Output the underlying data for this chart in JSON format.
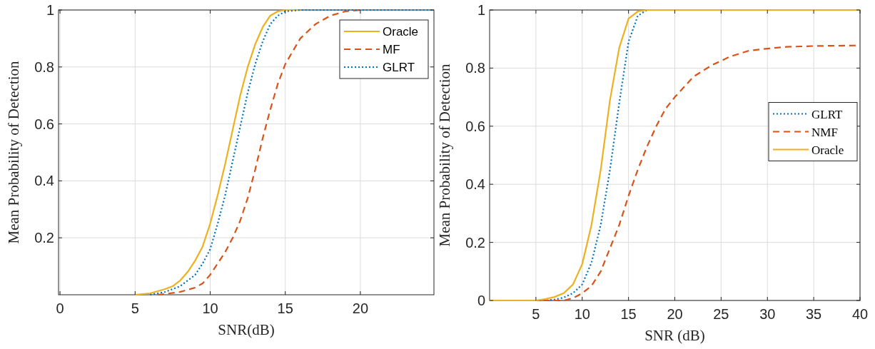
{
  "chart_data": [
    {
      "type": "line",
      "xlabel": "SNR(dB)",
      "ylabel": "Mean Probability of Detection",
      "xlim": [
        -0.1,
        24.9
      ],
      "ylim": [
        0,
        1
      ],
      "xticks": [
        0,
        5,
        10,
        15,
        20
      ],
      "yticks": [
        0.2,
        0.4,
        0.6,
        0.8,
        1
      ],
      "grid": true,
      "legend": "top right",
      "series": [
        {
          "name": "Oracle",
          "color": "#edb120",
          "line_style": "solid",
          "x": [
            5,
            6,
            7,
            7.5,
            8,
            8.5,
            9,
            9.5,
            10,
            10.5,
            11,
            11.5,
            12,
            12.5,
            13,
            13.5,
            14,
            14.5,
            15,
            16
          ],
          "values": [
            0,
            0.005,
            0.02,
            0.03,
            0.05,
            0.08,
            0.12,
            0.17,
            0.25,
            0.35,
            0.46,
            0.58,
            0.7,
            0.8,
            0.88,
            0.94,
            0.98,
            0.995,
            1,
            1
          ]
        },
        {
          "name": "MF",
          "color": "#d95319",
          "line_style": "dashed",
          "x": [
            6.5,
            7,
            8,
            9,
            9.5,
            10,
            10.5,
            11,
            11.5,
            12,
            12.5,
            13,
            13.5,
            14,
            14.5,
            15,
            16,
            17,
            18,
            19,
            20
          ],
          "values": [
            0,
            0.003,
            0.01,
            0.025,
            0.04,
            0.07,
            0.11,
            0.15,
            0.2,
            0.26,
            0.34,
            0.44,
            0.55,
            0.65,
            0.74,
            0.81,
            0.9,
            0.95,
            0.98,
            0.995,
            1
          ]
        },
        {
          "name": "GLRT",
          "color": "#0072bd",
          "line_style": "dotted",
          "x": [
            6,
            7,
            8,
            9,
            9.5,
            10,
            10.5,
            11,
            11.5,
            12,
            12.5,
            13,
            13.5,
            14,
            14.5,
            15,
            16,
            24.9
          ],
          "values": [
            0,
            0.01,
            0.03,
            0.07,
            0.11,
            0.16,
            0.25,
            0.35,
            0.47,
            0.59,
            0.71,
            0.81,
            0.89,
            0.95,
            0.98,
            0.995,
            1,
            1
          ]
        }
      ]
    },
    {
      "type": "line",
      "xlabel": "SNR (dB)",
      "ylabel": "Mean Probability of Detection",
      "xlim": [
        0,
        40
      ],
      "ylim": [
        0,
        1
      ],
      "xticks": [
        5,
        10,
        15,
        20,
        25,
        30,
        35,
        40
      ],
      "yticks": [
        0,
        0.2,
        0.4,
        0.6,
        0.8,
        1
      ],
      "grid": true,
      "legend": "right",
      "series": [
        {
          "name": "GLRT",
          "color": "#0072bd",
          "line_style": "dotted",
          "x": [
            0,
            6,
            7,
            8,
            9,
            10,
            11,
            12,
            13,
            14,
            15,
            16,
            17,
            40
          ],
          "values": [
            0,
            0,
            0.003,
            0.01,
            0.025,
            0.055,
            0.13,
            0.26,
            0.45,
            0.68,
            0.89,
            0.98,
            1,
            1
          ]
        },
        {
          "name": "NMF",
          "color": "#d95319",
          "line_style": "dashed",
          "x": [
            0,
            8,
            9,
            10,
            11,
            12,
            13,
            14,
            15,
            16,
            17,
            18,
            19,
            20,
            22,
            24,
            26,
            28,
            30,
            32,
            35,
            40
          ],
          "values": [
            0,
            0,
            0.008,
            0.025,
            0.05,
            0.1,
            0.18,
            0.26,
            0.36,
            0.45,
            0.53,
            0.6,
            0.66,
            0.7,
            0.77,
            0.81,
            0.84,
            0.86,
            0.867,
            0.873,
            0.876,
            0.878
          ]
        },
        {
          "name": "Oracle",
          "color": "#edb120",
          "line_style": "solid",
          "x": [
            0,
            5,
            6,
            7,
            8,
            9,
            10,
            11,
            12,
            13,
            14,
            15,
            16,
            17,
            40
          ],
          "values": [
            0,
            0,
            0.005,
            0.012,
            0.025,
            0.055,
            0.125,
            0.26,
            0.45,
            0.69,
            0.87,
            0.97,
            0.995,
            1,
            1
          ]
        }
      ]
    }
  ]
}
